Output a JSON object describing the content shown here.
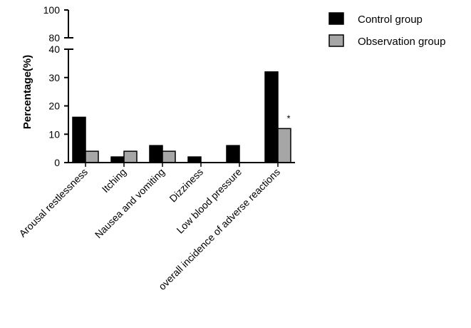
{
  "chart_data": {
    "type": "bar",
    "title": "",
    "xlabel": "",
    "ylabel": "Percentage(%)",
    "categories": [
      "Arousal restlessness",
      "Itching",
      "Nausea and vomiting",
      "Dizziness",
      "Low blood pressure",
      "overall incidence of adverse reactions"
    ],
    "series": [
      {
        "name": "Control group",
        "color": "#000000",
        "values": [
          16,
          2,
          6,
          2,
          6,
          32
        ]
      },
      {
        "name": "Observation group",
        "color": "#a6a6a6",
        "values": [
          4,
          4,
          4,
          0,
          0,
          12
        ]
      }
    ],
    "y_axis": {
      "broken": true,
      "lower_range": [
        0,
        40
      ],
      "lower_ticks": [
        0,
        10,
        20,
        30,
        40
      ],
      "upper_range": [
        80,
        100
      ],
      "upper_ticks": [
        80,
        100
      ]
    },
    "legend_position": "top-right",
    "grid": false,
    "annotations": [
      {
        "category": "overall incidence of adverse reactions",
        "series": "Observation group",
        "text": "*"
      }
    ]
  }
}
